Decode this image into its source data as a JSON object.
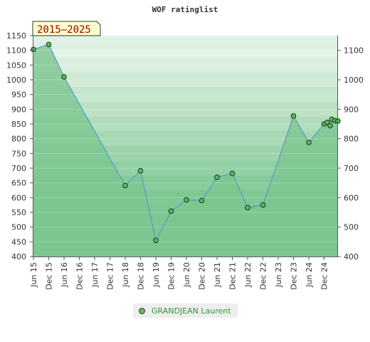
{
  "chart_data": {
    "type": "line",
    "title": "WOF ratinglist",
    "badge": "2015–2025",
    "ylim": [
      400,
      1150
    ],
    "y_ticks_left": [
      400,
      450,
      500,
      550,
      600,
      650,
      700,
      750,
      800,
      850,
      900,
      950,
      1000,
      1050,
      1100,
      1150
    ],
    "y_ticks_right": [
      400,
      500,
      600,
      700,
      800,
      900,
      1000,
      1100
    ],
    "x_categories": [
      "Jun 15",
      "Dec 15",
      "Jun 16",
      "Dec 16",
      "Jun 17",
      "Dec 17",
      "Jun 18",
      "Dec 18",
      "Jun 19",
      "Dec 19",
      "Jun 20",
      "Dec 20",
      "Jun 21",
      "Dec 21",
      "Jun 22",
      "Dec 22",
      "Jun 23",
      "Dec 23",
      "Jun 24",
      "Dec 24"
    ],
    "series": [
      {
        "name": "GRANDJEAN Laurent",
        "points": [
          {
            "x": 0.0,
            "y": 1103
          },
          {
            "x": 1.0,
            "y": 1120
          },
          {
            "x": 2.0,
            "y": 1010
          },
          {
            "x": 6.0,
            "y": 641
          },
          {
            "x": 7.0,
            "y": 691
          },
          {
            "x": 8.0,
            "y": 455
          },
          {
            "x": 9.0,
            "y": 554
          },
          {
            "x": 10.0,
            "y": 592
          },
          {
            "x": 11.0,
            "y": 590
          },
          {
            "x": 12.0,
            "y": 669
          },
          {
            "x": 13.0,
            "y": 682
          },
          {
            "x": 14.0,
            "y": 566
          },
          {
            "x": 15.0,
            "y": 575
          },
          {
            "x": 17.0,
            "y": 877
          },
          {
            "x": 18.0,
            "y": 787
          },
          {
            "x": 19.0,
            "y": 850
          },
          {
            "x": 19.2,
            "y": 855
          },
          {
            "x": 19.4,
            "y": 844
          },
          {
            "x": 19.5,
            "y": 866
          },
          {
            "x": 19.7,
            "y": 861
          },
          {
            "x": 19.9,
            "y": 860
          }
        ]
      }
    ],
    "colors": {
      "area_fill": "#7cc58e",
      "line": "#5599cc",
      "marker": "#5cb85c",
      "band_light": "#e8f5ea",
      "band_dark": "#7fc793",
      "badge_bg": "#ffffcc",
      "badge_text": "#990000",
      "legend_text": "#339933"
    }
  }
}
